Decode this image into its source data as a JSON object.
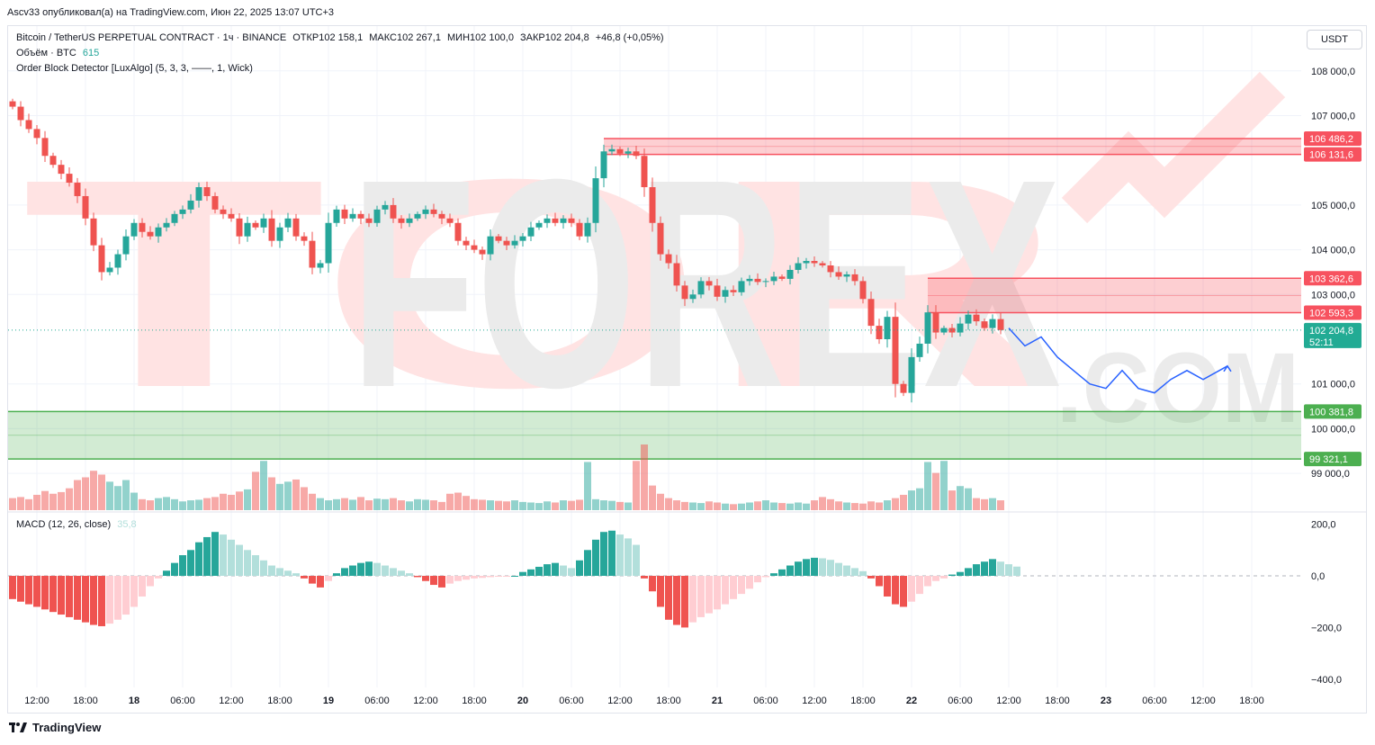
{
  "header": {
    "published_by": "Ascv33 опубликовал(а) на TradingView.com, Июн 22, 2025 13:07 UTC+3"
  },
  "legend": {
    "symbol": "Bitcoin / TetherUS PERPETUAL CONTRACT · 1ч · BINANCE",
    "open_label": "ОТКР",
    "open": "102 158,1",
    "high_label": "МАКС",
    "high": "102 267,1",
    "low_label": "МИН",
    "low": "102 100,0",
    "close_label": "ЗАКР",
    "close": "102 204,8",
    "change": "+46,8 (+0,05%)",
    "volume_label": "Объём · BTC",
    "volume_value": "615",
    "indicator": "Order Block Detector [LuxAlgo] (5, 3, 3, ——, 1, Wick)",
    "macd_label": "MACD (12, 26, close)",
    "macd_value": "35,8"
  },
  "currency": "USDT",
  "watermark": "TORFOREX.COM",
  "footer": {
    "brand": "TradingView"
  },
  "colors": {
    "up": "#26a69a",
    "down": "#ef5350",
    "bear_zone": "#f7525f",
    "bull_zone": "#4caf50",
    "projection": "#2962ff",
    "last_price": "#22ab94"
  },
  "chart_data": {
    "type": "candlestick",
    "price_axis": {
      "ticks": [
        108000,
        107000,
        105000,
        104000,
        103000,
        101000,
        100000,
        99000
      ],
      "tick_labels": [
        "108 000,0",
        "107 000,0",
        "105 000,0",
        "104 000,0",
        "103 000,0",
        "101 000,0",
        "100 000,0",
        "99 000,0"
      ]
    },
    "time_labels": [
      {
        "i": 3,
        "label": "12:00",
        "bold": false
      },
      {
        "i": 9,
        "label": "18:00",
        "bold": false
      },
      {
        "i": 15,
        "label": "18",
        "bold": true
      },
      {
        "i": 21,
        "label": "06:00",
        "bold": false
      },
      {
        "i": 27,
        "label": "12:00",
        "bold": false
      },
      {
        "i": 33,
        "label": "18:00",
        "bold": false
      },
      {
        "i": 39,
        "label": "19",
        "bold": true
      },
      {
        "i": 45,
        "label": "06:00",
        "bold": false
      },
      {
        "i": 51,
        "label": "12:00",
        "bold": false
      },
      {
        "i": 57,
        "label": "18:00",
        "bold": false
      },
      {
        "i": 63,
        "label": "20",
        "bold": true
      },
      {
        "i": 69,
        "label": "06:00",
        "bold": false
      },
      {
        "i": 75,
        "label": "12:00",
        "bold": false
      },
      {
        "i": 81,
        "label": "18:00",
        "bold": false
      },
      {
        "i": 87,
        "label": "21",
        "bold": true
      },
      {
        "i": 93,
        "label": "06:00",
        "bold": false
      },
      {
        "i": 99,
        "label": "12:00",
        "bold": false
      },
      {
        "i": 105,
        "label": "18:00",
        "bold": false
      },
      {
        "i": 111,
        "label": "22",
        "bold": true
      },
      {
        "i": 117,
        "label": "06:00",
        "bold": false
      },
      {
        "i": 123,
        "label": "12:00",
        "bold": false
      },
      {
        "i": 129,
        "label": "18:00",
        "bold": false
      },
      {
        "i": 135,
        "label": "23",
        "bold": true
      },
      {
        "i": 141,
        "label": "06:00",
        "bold": false
      },
      {
        "i": 147,
        "label": "12:00",
        "bold": false
      },
      {
        "i": 153,
        "label": "18:00",
        "bold": false
      }
    ],
    "closes": [
      107200,
      106900,
      106700,
      106500,
      106100,
      105900,
      105700,
      105500,
      105200,
      104700,
      104100,
      103500,
      103600,
      103900,
      104300,
      104600,
      104400,
      104300,
      104500,
      104600,
      104800,
      104900,
      105100,
      105400,
      105200,
      104900,
      104800,
      104700,
      104300,
      104600,
      104500,
      104700,
      104200,
      104500,
      104700,
      104300,
      104200,
      103600,
      103700,
      104600,
      104900,
      104700,
      104800,
      104700,
      104600,
      104900,
      105000,
      104700,
      104600,
      104700,
      104800,
      104900,
      104800,
      104700,
      104600,
      104200,
      104100,
      104000,
      103900,
      104300,
      104200,
      104100,
      104200,
      104300,
      104500,
      104600,
      104700,
      104600,
      104700,
      104600,
      104300,
      104600,
      105600,
      106200,
      106250,
      106150,
      106200,
      106100,
      105400,
      104600,
      103900,
      103700,
      103200,
      102900,
      103000,
      103300,
      103200,
      102950,
      103100,
      103050,
      103300,
      103350,
      103280,
      103300,
      103400,
      103350,
      103550,
      103700,
      103750,
      103700,
      103650,
      103500,
      103400,
      103450,
      103300,
      102900,
      102300,
      102000,
      102500,
      101000,
      100800,
      101600,
      101900,
      102600,
      102150,
      102250,
      102150,
      102350,
      102550,
      102400,
      102250,
      102450,
      102204.8
    ],
    "volume_bars": [
      22,
      24,
      20,
      28,
      35,
      30,
      33,
      40,
      55,
      60,
      72,
      65,
      52,
      44,
      55,
      32,
      20,
      18,
      22,
      24,
      20,
      16,
      18,
      19,
      22,
      24,
      30,
      28,
      34,
      38,
      70,
      90,
      60,
      48,
      52,
      56,
      42,
      30,
      22,
      18,
      20,
      22,
      19,
      24,
      18,
      21,
      20,
      22,
      18,
      16,
      20,
      19,
      18,
      15,
      30,
      32,
      26,
      20,
      19,
      18,
      17,
      16,
      18,
      15,
      14,
      13,
      16,
      14,
      18,
      17,
      19,
      88,
      20,
      18,
      17,
      15,
      14,
      90,
      120,
      45,
      30,
      22,
      18,
      15,
      14,
      13,
      16,
      14,
      12,
      11,
      12,
      14,
      16,
      18,
      14,
      13,
      12,
      14,
      12,
      18,
      24,
      20,
      16,
      14,
      13,
      12,
      16,
      14,
      18,
      22,
      28,
      36,
      40,
      88,
      68,
      90,
      36,
      44,
      40,
      22,
      20,
      22,
      18,
      17,
      16,
      18,
      14
    ],
    "macd_histogram": [
      -90,
      -100,
      -110,
      -120,
      -130,
      -140,
      -150,
      -160,
      -170,
      -180,
      -190,
      -195,
      -185,
      -170,
      -150,
      -120,
      -80,
      -40,
      -10,
      20,
      50,
      80,
      100,
      130,
      150,
      170,
      160,
      140,
      120,
      100,
      80,
      60,
      40,
      30,
      20,
      10,
      -10,
      -30,
      -45,
      -20,
      10,
      30,
      40,
      50,
      55,
      50,
      40,
      30,
      20,
      10,
      -5,
      -20,
      -35,
      -45,
      -30,
      -20,
      -15,
      -10,
      -8,
      -5,
      -3,
      -2,
      0,
      15,
      25,
      35,
      45,
      50,
      40,
      30,
      60,
      100,
      140,
      170,
      175,
      160,
      145,
      120,
      -10,
      -60,
      -120,
      -170,
      -190,
      -200,
      -180,
      -160,
      -145,
      -130,
      -110,
      -90,
      -70,
      -50,
      -25,
      -5,
      10,
      25,
      40,
      55,
      65,
      70,
      68,
      62,
      50,
      40,
      30,
      18,
      -10,
      -40,
      -80,
      -110,
      -120,
      -100,
      -70,
      -40,
      -20,
      -10,
      5,
      15,
      30,
      45,
      55,
      65,
      55,
      45,
      35.8
    ],
    "order_blocks": [
      {
        "type": "bearish",
        "top": 106486.2,
        "bottom": 106131.6,
        "start": 73,
        "top_label": "106 486,2",
        "bottom_label": "106 131,6"
      },
      {
        "type": "bearish",
        "top": 103362.6,
        "bottom": 102593.3,
        "start": 113,
        "top_label": "103 362,6",
        "bottom_label": "102 593,3"
      },
      {
        "type": "bullish",
        "top": 100381.8,
        "bottom": 99321.1,
        "start": 0,
        "top_label": "100 381,8",
        "bottom_label": "99 321,1"
      }
    ],
    "projection": [
      [
        123,
        102250
      ],
      [
        125,
        101850
      ],
      [
        127,
        102050
      ],
      [
        129,
        101600
      ],
      [
        131,
        101300
      ],
      [
        133,
        101000
      ],
      [
        135,
        100900
      ],
      [
        137,
        101300
      ],
      [
        139,
        100900
      ],
      [
        141,
        100800
      ],
      [
        143,
        101100
      ],
      [
        145,
        101300
      ],
      [
        147,
        101100
      ],
      [
        149,
        101300
      ],
      [
        150,
        101400
      ]
    ],
    "last_price": {
      "value": "102 204,8",
      "countdown": "52:11"
    },
    "macd_axis": {
      "ticks": [
        200,
        0,
        -200,
        -400
      ],
      "tick_labels": [
        "200,0",
        "0,0",
        "−200,0",
        "−400,0"
      ]
    }
  }
}
